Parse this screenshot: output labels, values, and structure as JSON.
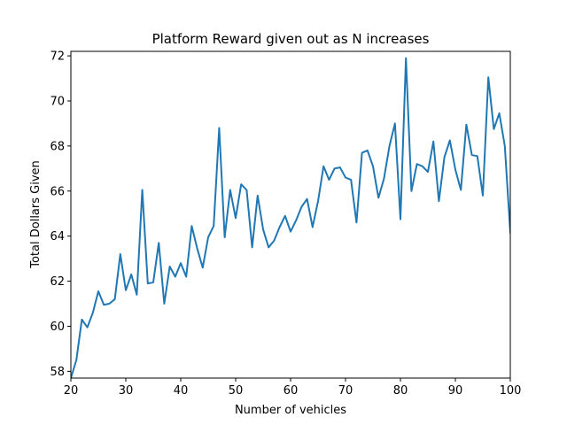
{
  "chart_data": {
    "type": "line",
    "title": "Platform Reward given out as N increases",
    "xlabel": "Number of vehicles",
    "ylabel": "Total Dollars Given",
    "xlim": [
      20,
      100
    ],
    "ylim": [
      57.7,
      72.2
    ],
    "x_ticks": [
      20,
      30,
      40,
      50,
      60,
      70,
      80,
      90,
      100
    ],
    "y_ticks": [
      58,
      60,
      62,
      64,
      66,
      68,
      70,
      72
    ],
    "grid": false,
    "line_color": "#1f77b4",
    "series": [
      {
        "x": [
          20,
          21,
          22,
          23,
          24,
          25,
          26,
          27,
          28,
          29,
          30,
          31,
          32,
          33,
          34,
          35,
          36,
          37,
          38,
          39,
          40,
          41,
          42,
          43,
          44,
          45,
          46,
          47,
          48,
          49,
          50,
          51,
          52,
          53,
          54,
          55,
          56,
          57,
          58,
          59,
          60,
          61,
          62,
          63,
          64,
          65,
          66,
          67,
          68,
          69,
          70,
          71,
          72,
          73,
          74,
          75,
          76,
          77,
          78,
          79,
          80,
          81,
          82,
          83,
          84,
          85,
          86,
          87,
          88,
          89,
          90,
          91,
          92,
          93,
          94,
          95,
          96,
          97,
          98,
          99,
          100
        ],
        "values": [
          57.7,
          58.5,
          60.3,
          59.95,
          60.6,
          61.55,
          60.95,
          61.0,
          61.2,
          63.2,
          61.6,
          62.3,
          61.4,
          66.05,
          61.9,
          61.95,
          63.7,
          61.0,
          62.65,
          62.2,
          62.8,
          62.2,
          64.45,
          63.45,
          62.6,
          63.95,
          64.45,
          68.8,
          63.95,
          66.05,
          64.8,
          66.3,
          66.05,
          63.5,
          65.8,
          64.3,
          63.5,
          63.8,
          64.4,
          64.9,
          64.2,
          64.7,
          65.3,
          65.65,
          64.4,
          65.55,
          67.1,
          66.5,
          67.0,
          67.05,
          66.6,
          66.5,
          64.6,
          67.7,
          67.8,
          67.1,
          65.7,
          66.55,
          68.0,
          69.0,
          64.75,
          71.9,
          66.0,
          67.2,
          67.1,
          66.85,
          68.2,
          65.55,
          67.5,
          68.25,
          66.95,
          66.05,
          68.95,
          67.6,
          67.55,
          65.8,
          71.05,
          68.75,
          69.45,
          68.0,
          64.15
        ]
      }
    ]
  }
}
